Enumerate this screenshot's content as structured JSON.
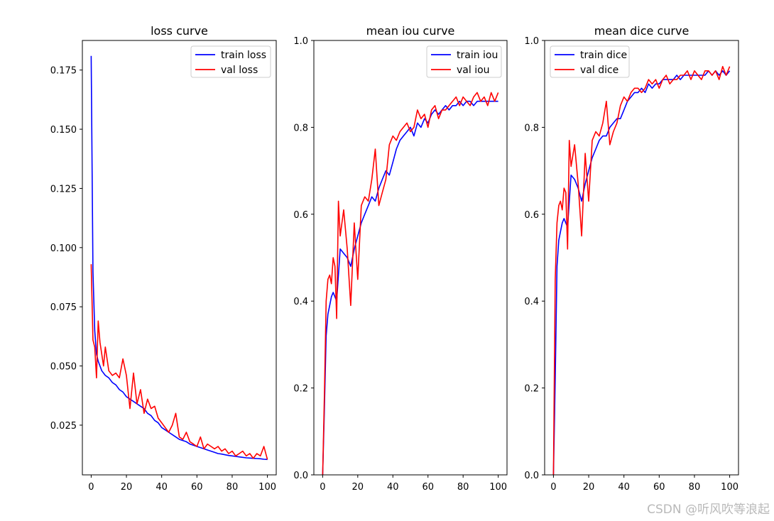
{
  "watermark": "CSDN @听风吹等浪起",
  "colors": {
    "train": "#0000ff",
    "val": "#ff0000",
    "axis": "#000000"
  },
  "chart_data": [
    {
      "type": "line",
      "title": "loss curve",
      "xlabel": "",
      "ylabel": "",
      "xlim": [
        -5,
        105
      ],
      "ylim": [
        0.004,
        0.1875
      ],
      "xticks": [
        0,
        20,
        40,
        60,
        80,
        100
      ],
      "yticks": [
        0.025,
        0.05,
        0.075,
        0.1,
        0.125,
        0.15,
        0.175
      ],
      "ytick_labels": [
        "0.025",
        "0.050",
        "0.075",
        "0.100",
        "0.125",
        "0.150",
        "0.175"
      ],
      "legend": "top-right",
      "series": [
        {
          "name": "train loss",
          "color": "#0000ff",
          "x": [
            0,
            1,
            2,
            3,
            4,
            6,
            8,
            10,
            12,
            14,
            16,
            18,
            20,
            22,
            24,
            26,
            28,
            30,
            32,
            34,
            36,
            38,
            40,
            42,
            44,
            46,
            48,
            50,
            52,
            54,
            56,
            58,
            60,
            62,
            64,
            66,
            68,
            70,
            72,
            74,
            76,
            78,
            80,
            82,
            84,
            86,
            88,
            90,
            92,
            94,
            96,
            98,
            100
          ],
          "y": [
            0.181,
            0.09,
            0.065,
            0.055,
            0.052,
            0.048,
            0.046,
            0.045,
            0.043,
            0.042,
            0.04,
            0.039,
            0.037,
            0.036,
            0.035,
            0.034,
            0.033,
            0.032,
            0.03,
            0.029,
            0.027,
            0.026,
            0.024,
            0.023,
            0.022,
            0.021,
            0.02,
            0.019,
            0.0185,
            0.018,
            0.017,
            0.0165,
            0.016,
            0.0155,
            0.015,
            0.0145,
            0.014,
            0.0135,
            0.013,
            0.0128,
            0.0125,
            0.0122,
            0.012,
            0.0118,
            0.0116,
            0.0114,
            0.0112,
            0.0111,
            0.011,
            0.0109,
            0.0108,
            0.0106,
            0.0105
          ]
        },
        {
          "name": "val loss",
          "color": "#ff0000",
          "x": [
            0,
            1,
            2,
            3,
            4,
            5,
            6,
            7,
            8,
            10,
            12,
            14,
            16,
            18,
            20,
            22,
            24,
            26,
            28,
            30,
            32,
            34,
            36,
            38,
            40,
            42,
            44,
            46,
            48,
            50,
            52,
            54,
            56,
            58,
            60,
            62,
            64,
            66,
            68,
            70,
            72,
            74,
            76,
            78,
            80,
            82,
            84,
            86,
            88,
            90,
            92,
            94,
            96,
            98,
            100
          ],
          "y": [
            0.093,
            0.061,
            0.058,
            0.045,
            0.069,
            0.06,
            0.055,
            0.05,
            0.058,
            0.048,
            0.046,
            0.047,
            0.045,
            0.053,
            0.046,
            0.032,
            0.047,
            0.034,
            0.04,
            0.03,
            0.036,
            0.032,
            0.033,
            0.028,
            0.026,
            0.024,
            0.022,
            0.025,
            0.03,
            0.02,
            0.019,
            0.022,
            0.018,
            0.017,
            0.016,
            0.02,
            0.015,
            0.017,
            0.016,
            0.015,
            0.016,
            0.014,
            0.015,
            0.013,
            0.014,
            0.012,
            0.013,
            0.014,
            0.012,
            0.013,
            0.011,
            0.013,
            0.012,
            0.016,
            0.0105
          ]
        }
      ]
    },
    {
      "type": "line",
      "title": "mean iou curve",
      "xlabel": "",
      "ylabel": "",
      "xlim": [
        -5,
        105
      ],
      "ylim": [
        0.0,
        1.0
      ],
      "xticks": [
        0,
        20,
        40,
        60,
        80,
        100
      ],
      "yticks": [
        0.0,
        0.2,
        0.4,
        0.6,
        0.8,
        1.0
      ],
      "ytick_labels": [
        "0.0",
        "0.2",
        "0.4",
        "0.6",
        "0.8",
        "1.0"
      ],
      "legend": "top-right",
      "series": [
        {
          "name": "train iou",
          "color": "#0000ff",
          "x": [
            0,
            1,
            2,
            3,
            4,
            5,
            6,
            8,
            10,
            12,
            14,
            16,
            18,
            20,
            22,
            24,
            26,
            28,
            30,
            32,
            34,
            36,
            38,
            40,
            42,
            44,
            46,
            48,
            50,
            52,
            54,
            56,
            58,
            60,
            62,
            64,
            66,
            68,
            70,
            72,
            74,
            76,
            78,
            80,
            82,
            84,
            86,
            88,
            90,
            92,
            94,
            96,
            98,
            100
          ],
          "y": [
            0.0,
            0.15,
            0.32,
            0.37,
            0.39,
            0.41,
            0.42,
            0.4,
            0.52,
            0.51,
            0.5,
            0.48,
            0.52,
            0.55,
            0.58,
            0.6,
            0.62,
            0.64,
            0.63,
            0.66,
            0.68,
            0.7,
            0.69,
            0.72,
            0.75,
            0.77,
            0.78,
            0.79,
            0.8,
            0.78,
            0.81,
            0.8,
            0.82,
            0.81,
            0.83,
            0.84,
            0.83,
            0.84,
            0.85,
            0.84,
            0.85,
            0.85,
            0.86,
            0.85,
            0.86,
            0.86,
            0.85,
            0.86,
            0.86,
            0.86,
            0.86,
            0.86,
            0.86,
            0.86
          ]
        },
        {
          "name": "val iou",
          "color": "#ff0000",
          "x": [
            0,
            1,
            2,
            3,
            4,
            5,
            6,
            7,
            8,
            9,
            10,
            12,
            14,
            16,
            18,
            20,
            22,
            24,
            26,
            28,
            30,
            32,
            34,
            36,
            38,
            40,
            42,
            44,
            46,
            48,
            50,
            52,
            54,
            56,
            58,
            60,
            62,
            64,
            66,
            68,
            70,
            72,
            74,
            76,
            78,
            80,
            82,
            84,
            86,
            88,
            90,
            92,
            94,
            96,
            98,
            100
          ],
          "y": [
            0.0,
            0.18,
            0.4,
            0.45,
            0.46,
            0.44,
            0.5,
            0.48,
            0.36,
            0.63,
            0.55,
            0.61,
            0.52,
            0.39,
            0.58,
            0.45,
            0.62,
            0.64,
            0.63,
            0.68,
            0.75,
            0.62,
            0.65,
            0.68,
            0.76,
            0.78,
            0.77,
            0.79,
            0.8,
            0.81,
            0.79,
            0.8,
            0.84,
            0.82,
            0.83,
            0.8,
            0.84,
            0.85,
            0.82,
            0.84,
            0.84,
            0.85,
            0.86,
            0.87,
            0.85,
            0.87,
            0.86,
            0.85,
            0.87,
            0.88,
            0.86,
            0.87,
            0.85,
            0.88,
            0.86,
            0.88
          ]
        }
      ]
    },
    {
      "type": "line",
      "title": "mean dice curve",
      "xlabel": "",
      "ylabel": "",
      "xlim": [
        -5,
        105
      ],
      "ylim": [
        0.0,
        1.0
      ],
      "xticks": [
        0,
        20,
        40,
        60,
        80,
        100
      ],
      "yticks": [
        0.0,
        0.2,
        0.4,
        0.6,
        0.8,
        1.0
      ],
      "ytick_labels": [
        "0.0",
        "0.2",
        "0.4",
        "0.6",
        "0.8",
        "1.0"
      ],
      "legend": "top-left",
      "series": [
        {
          "name": "train dice",
          "color": "#0000ff",
          "x": [
            0,
            1,
            2,
            3,
            4,
            5,
            6,
            8,
            10,
            12,
            14,
            16,
            18,
            20,
            22,
            24,
            26,
            28,
            30,
            32,
            34,
            36,
            38,
            40,
            42,
            44,
            46,
            48,
            50,
            52,
            54,
            56,
            58,
            60,
            62,
            64,
            66,
            68,
            70,
            72,
            74,
            76,
            78,
            80,
            82,
            84,
            86,
            88,
            90,
            92,
            94,
            96,
            98,
            100
          ],
          "y": [
            0.0,
            0.22,
            0.48,
            0.54,
            0.56,
            0.58,
            0.59,
            0.57,
            0.69,
            0.68,
            0.66,
            0.63,
            0.67,
            0.7,
            0.73,
            0.75,
            0.77,
            0.78,
            0.78,
            0.8,
            0.81,
            0.82,
            0.82,
            0.84,
            0.86,
            0.87,
            0.88,
            0.88,
            0.89,
            0.88,
            0.9,
            0.89,
            0.9,
            0.9,
            0.91,
            0.91,
            0.91,
            0.91,
            0.92,
            0.91,
            0.92,
            0.92,
            0.92,
            0.92,
            0.92,
            0.92,
            0.92,
            0.93,
            0.92,
            0.93,
            0.92,
            0.93,
            0.92,
            0.93
          ]
        },
        {
          "name": "val dice",
          "color": "#ff0000",
          "x": [
            0,
            1,
            2,
            3,
            4,
            5,
            6,
            7,
            8,
            9,
            10,
            12,
            14,
            16,
            18,
            20,
            22,
            24,
            26,
            28,
            30,
            32,
            34,
            36,
            38,
            40,
            42,
            44,
            46,
            48,
            50,
            52,
            54,
            56,
            58,
            60,
            62,
            64,
            66,
            68,
            70,
            72,
            74,
            76,
            78,
            80,
            82,
            84,
            86,
            88,
            90,
            92,
            94,
            96,
            98,
            100
          ],
          "y": [
            0.0,
            0.45,
            0.58,
            0.62,
            0.63,
            0.61,
            0.66,
            0.65,
            0.52,
            0.77,
            0.71,
            0.76,
            0.67,
            0.55,
            0.74,
            0.63,
            0.77,
            0.79,
            0.78,
            0.81,
            0.86,
            0.76,
            0.79,
            0.81,
            0.85,
            0.87,
            0.86,
            0.88,
            0.89,
            0.89,
            0.88,
            0.89,
            0.91,
            0.9,
            0.91,
            0.89,
            0.91,
            0.92,
            0.9,
            0.91,
            0.91,
            0.92,
            0.92,
            0.93,
            0.91,
            0.93,
            0.92,
            0.91,
            0.93,
            0.93,
            0.92,
            0.93,
            0.91,
            0.94,
            0.92,
            0.94
          ]
        }
      ]
    }
  ]
}
